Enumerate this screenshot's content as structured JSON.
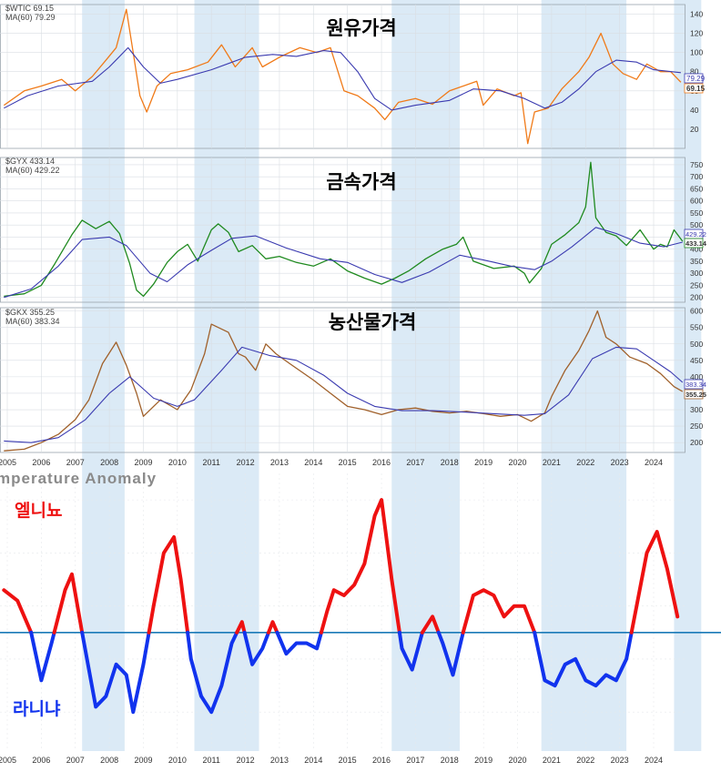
{
  "colors": {
    "band": "#dbeaf6",
    "ma_line": "#3a3ab0",
    "oil": "#f07a18",
    "metal": "#1f8a1f",
    "agri": "#a0602a",
    "elnino": "#ee1111",
    "lanina": "#1133ee",
    "zero_line": "#1a7ab8",
    "title": "#2222dd"
  },
  "years": [
    "2005",
    "2006",
    "2007",
    "2008",
    "2009",
    "2010",
    "2011",
    "2012",
    "2013",
    "2014",
    "2015",
    "2016",
    "2017",
    "2018",
    "2019",
    "2020",
    "2021",
    "2022",
    "2023",
    "2024"
  ],
  "shaded_periods": [
    [
      2007.2,
      2008.45
    ],
    [
      2010.5,
      2012.4
    ],
    [
      2016.3,
      2018.3
    ],
    [
      2020.7,
      2023.2
    ],
    [
      2024.6,
      2025.4
    ]
  ],
  "chart_data": [
    {
      "type": "line",
      "title": "원유가격",
      "legend": [
        "$WTIC 69.15",
        "MA(60) 79.29"
      ],
      "price_label": "69.15",
      "ma_label": "79.29",
      "ylim": [
        0,
        150
      ],
      "y_ticks": [
        "20",
        "40",
        "60",
        "80",
        "100",
        "120",
        "140"
      ],
      "series": [
        {
          "name": "$WTIC",
          "x": [
            2004.9,
            2005.5,
            2006.0,
            2006.6,
            2007.0,
            2007.5,
            2007.9,
            2008.2,
            2008.5,
            2008.7,
            2008.9,
            2009.1,
            2009.4,
            2009.8,
            2010.3,
            2010.9,
            2011.3,
            2011.7,
            2012.2,
            2012.5,
            2013.0,
            2013.6,
            2014.1,
            2014.5,
            2014.9,
            2015.3,
            2015.8,
            2016.1,
            2016.5,
            2017.0,
            2017.5,
            2018.0,
            2018.8,
            2018.99,
            2019.4,
            2019.9,
            2020.1,
            2020.3,
            2020.5,
            2020.9,
            2021.3,
            2021.8,
            2022.1,
            2022.45,
            2022.8,
            2023.1,
            2023.5,
            2023.8,
            2024.2,
            2024.5,
            2024.8
          ],
          "y": [
            45,
            60,
            65,
            72,
            60,
            75,
            92,
            105,
            145,
            100,
            55,
            38,
            65,
            78,
            82,
            90,
            108,
            85,
            105,
            85,
            95,
            105,
            100,
            105,
            60,
            55,
            42,
            30,
            48,
            52,
            46,
            60,
            70,
            45,
            62,
            55,
            58,
            5,
            38,
            42,
            62,
            80,
            95,
            120,
            88,
            78,
            72,
            88,
            80,
            80,
            69
          ]
        },
        {
          "name": "MA(60)",
          "x": [
            2004.9,
            2005.6,
            2006.5,
            2007.5,
            2008.0,
            2008.55,
            2009.0,
            2009.5,
            2010.0,
            2011.0,
            2012.0,
            2012.8,
            2013.5,
            2014.3,
            2014.8,
            2015.3,
            2015.8,
            2016.3,
            2017.0,
            2018.0,
            2018.7,
            2019.5,
            2020.2,
            2020.8,
            2021.3,
            2021.8,
            2022.3,
            2022.9,
            2023.5,
            2024.0,
            2024.8
          ],
          "y": [
            42,
            55,
            65,
            70,
            85,
            105,
            85,
            68,
            72,
            82,
            95,
            98,
            96,
            102,
            100,
            80,
            52,
            40,
            45,
            50,
            62,
            60,
            52,
            42,
            48,
            62,
            80,
            92,
            90,
            82,
            79
          ]
        }
      ]
    },
    {
      "type": "line",
      "title": "금속가격",
      "legend": [
        "$GYX 433.14",
        "MA(60) 429.22"
      ],
      "price_label": "433.14",
      "ma_label": "429.22",
      "ylim": [
        180,
        780
      ],
      "y_ticks": [
        "200",
        "250",
        "300",
        "350",
        "400",
        "450",
        "500",
        "550",
        "600",
        "650",
        "700",
        "750"
      ],
      "series": [
        {
          "name": "$GYX",
          "x": [
            2004.9,
            2005.5,
            2006.0,
            2006.4,
            2006.9,
            2007.2,
            2007.6,
            2008.0,
            2008.3,
            2008.6,
            2008.8,
            2009.0,
            2009.3,
            2009.7,
            2010.0,
            2010.3,
            2010.6,
            2011.0,
            2011.2,
            2011.5,
            2011.8,
            2012.2,
            2012.6,
            2013.0,
            2013.5,
            2014.0,
            2014.5,
            2015.0,
            2015.5,
            2016.0,
            2016.4,
            2016.8,
            2017.3,
            2017.8,
            2018.2,
            2018.4,
            2018.7,
            2019.3,
            2019.9,
            2020.2,
            2020.35,
            2020.7,
            2021.0,
            2021.4,
            2021.8,
            2022.0,
            2022.15,
            2022.3,
            2022.6,
            2022.9,
            2023.2,
            2023.6,
            2024.0,
            2024.2,
            2024.4,
            2024.6,
            2024.85
          ],
          "y": [
            205,
            215,
            250,
            340,
            460,
            520,
            485,
            515,
            465,
            340,
            230,
            205,
            255,
            345,
            390,
            420,
            350,
            480,
            505,
            470,
            390,
            415,
            360,
            370,
            345,
            330,
            360,
            310,
            280,
            255,
            280,
            310,
            360,
            400,
            420,
            450,
            350,
            320,
            330,
            300,
            260,
            320,
            420,
            460,
            510,
            575,
            760,
            530,
            470,
            455,
            415,
            480,
            400,
            420,
            410,
            480,
            433
          ]
        },
        {
          "name": "MA(60)",
          "x": [
            2004.9,
            2005.7,
            2006.5,
            2007.2,
            2008.0,
            2008.5,
            2009.2,
            2009.7,
            2010.3,
            2011.0,
            2011.6,
            2012.3,
            2013.2,
            2014.2,
            2015.0,
            2015.8,
            2016.6,
            2017.4,
            2018.3,
            2019.0,
            2019.8,
            2020.5,
            2021.0,
            2021.6,
            2022.3,
            2022.9,
            2023.6,
            2024.3,
            2024.85
          ],
          "y": [
            200,
            235,
            330,
            440,
            450,
            415,
            300,
            265,
            335,
            395,
            445,
            455,
            405,
            360,
            345,
            295,
            262,
            305,
            375,
            355,
            330,
            315,
            350,
            410,
            490,
            465,
            425,
            410,
            429
          ]
        }
      ]
    },
    {
      "type": "line",
      "title": "농산물가격",
      "legend": [
        "$GKX 355.25",
        "MA(60) 383.34"
      ],
      "price_label": "355.25",
      "ma_label": "383.34",
      "ylim": [
        170,
        610
      ],
      "y_ticks": [
        "200",
        "250",
        "300",
        "350",
        "400",
        "450",
        "500",
        "550",
        "600"
      ],
      "series": [
        {
          "name": "$GKX",
          "x": [
            2004.9,
            2005.5,
            2006.0,
            2006.5,
            2007.0,
            2007.4,
            2007.8,
            2008.2,
            2008.5,
            2008.8,
            2009.0,
            2009.5,
            2010.0,
            2010.4,
            2010.8,
            2011.0,
            2011.5,
            2011.8,
            2012.0,
            2012.3,
            2012.6,
            2012.9,
            2013.3,
            2014.0,
            2014.5,
            2015.0,
            2015.5,
            2016.0,
            2016.5,
            2017.0,
            2017.5,
            2018.0,
            2018.5,
            2019.0,
            2019.5,
            2020.0,
            2020.4,
            2020.8,
            2021.0,
            2021.4,
            2021.8,
            2022.1,
            2022.35,
            2022.6,
            2022.9,
            2023.3,
            2023.8,
            2024.2,
            2024.6,
            2024.85
          ],
          "y": [
            175,
            180,
            200,
            225,
            270,
            330,
            440,
            505,
            435,
            350,
            280,
            330,
            300,
            360,
            470,
            560,
            535,
            470,
            460,
            420,
            500,
            470,
            440,
            390,
            350,
            310,
            300,
            285,
            300,
            305,
            295,
            290,
            295,
            288,
            280,
            285,
            265,
            290,
            340,
            420,
            480,
            540,
            600,
            520,
            500,
            460,
            440,
            410,
            370,
            355
          ]
        },
        {
          "name": "MA(60)",
          "x": [
            2004.9,
            2005.7,
            2006.5,
            2007.3,
            2008.0,
            2008.6,
            2009.3,
            2010.0,
            2010.5,
            2011.3,
            2011.9,
            2012.7,
            2013.5,
            2014.3,
            2015.0,
            2015.8,
            2016.6,
            2017.5,
            2018.4,
            2019.3,
            2020.2,
            2020.8,
            2021.5,
            2022.2,
            2022.9,
            2023.5,
            2024.0,
            2024.5,
            2024.85
          ],
          "y": [
            205,
            200,
            215,
            270,
            350,
            400,
            335,
            310,
            330,
            420,
            490,
            465,
            450,
            405,
            350,
            310,
            297,
            297,
            293,
            288,
            283,
            288,
            345,
            455,
            490,
            485,
            450,
            415,
            383
          ]
        }
      ]
    },
    {
      "type": "line",
      "title": "mperature Anomaly",
      "annotations": [
        "엘니뇨",
        "라니냐"
      ],
      "ylim": [
        -2.2,
        3.0
      ],
      "series": [
        {
          "name": "",
          "x": [
            2004.9,
            2005.3,
            2005.7,
            2006.0,
            2006.3,
            2006.7,
            2006.9,
            2007.2,
            2007.6,
            2007.9,
            2008.2,
            2008.5,
            2008.7,
            2009.0,
            2009.3,
            2009.6,
            2009.9,
            2010.1,
            2010.4,
            2010.7,
            2011.0,
            2011.3,
            2011.6,
            2011.9,
            2012.2,
            2012.5,
            2012.8,
            2013.2,
            2013.5,
            2013.8,
            2014.1,
            2014.4,
            2014.6,
            2014.9,
            2015.2,
            2015.5,
            2015.8,
            2016.0,
            2016.3,
            2016.6,
            2016.9,
            2017.2,
            2017.5,
            2017.8,
            2018.1,
            2018.4,
            2018.7,
            2019.0,
            2019.3,
            2019.6,
            2019.9,
            2020.2,
            2020.5,
            2020.8,
            2021.1,
            2021.4,
            2021.7,
            2022.0,
            2022.3,
            2022.6,
            2022.9,
            2023.2,
            2023.5,
            2023.8,
            2024.1,
            2024.4,
            2024.7
          ],
          "y": [
            0.8,
            0.6,
            0.0,
            -0.9,
            -0.2,
            0.8,
            1.1,
            0.0,
            -1.4,
            -1.2,
            -0.6,
            -0.8,
            -1.5,
            -0.6,
            0.5,
            1.5,
            1.8,
            1.0,
            -0.5,
            -1.2,
            -1.5,
            -1.0,
            -0.2,
            0.2,
            -0.6,
            -0.3,
            0.2,
            -0.4,
            -0.2,
            -0.2,
            -0.3,
            0.4,
            0.8,
            0.7,
            0.9,
            1.3,
            2.2,
            2.5,
            1.0,
            -0.3,
            -0.7,
            0.0,
            0.3,
            -0.2,
            -0.8,
            0.0,
            0.7,
            0.8,
            0.7,
            0.3,
            0.5,
            0.5,
            0.0,
            -0.9,
            -1.0,
            -0.6,
            -0.5,
            -0.9,
            -1.0,
            -0.8,
            -0.9,
            -0.5,
            0.5,
            1.5,
            1.9,
            1.2,
            0.3
          ]
        }
      ]
    }
  ]
}
